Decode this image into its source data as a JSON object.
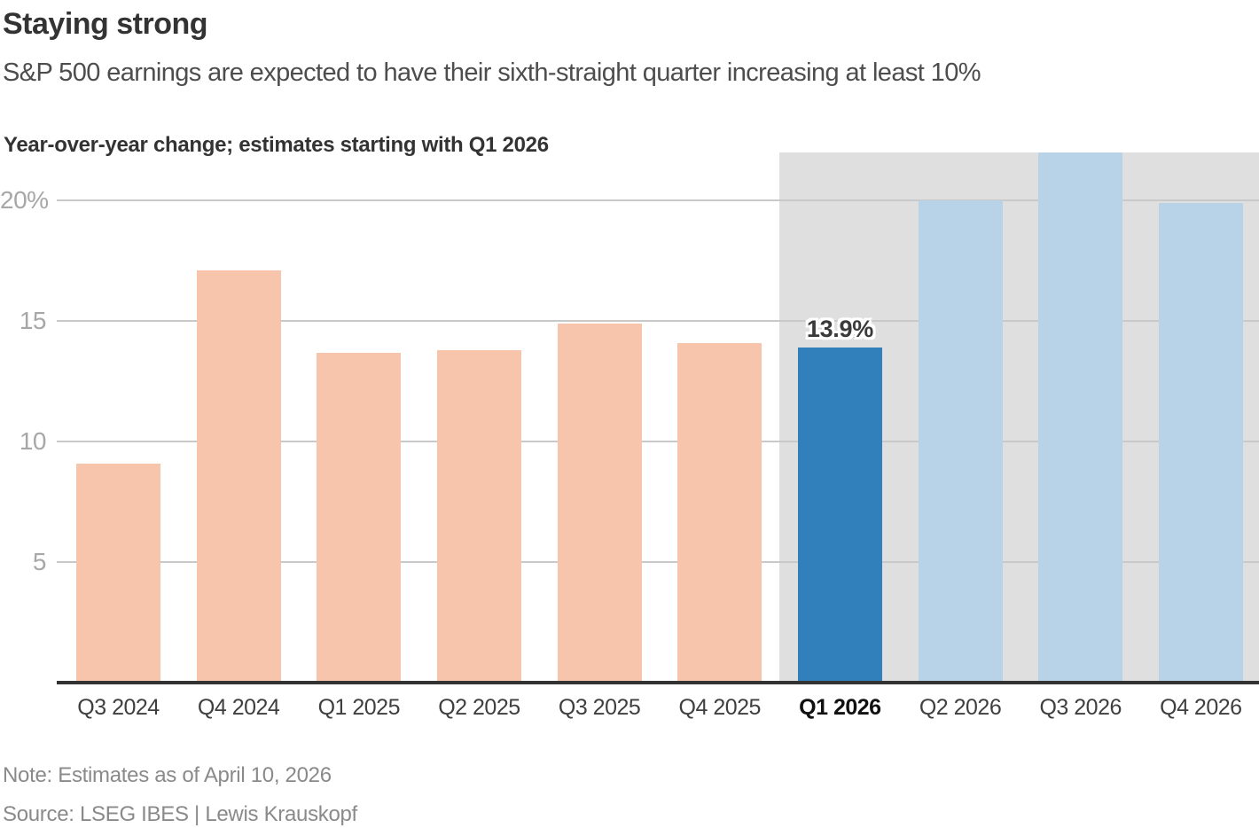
{
  "chart_data": {
    "type": "bar",
    "title": "Staying strong",
    "subtitle": "S&P 500 earnings are expected to have their sixth-straight quarter increasing at least 10%",
    "axis_note": "Year-over-year change; estimates starting with Q1 2026",
    "categories": [
      "Q3 2024",
      "Q4 2024",
      "Q1 2025",
      "Q2 2025",
      "Q3 2025",
      "Q4 2025",
      "Q1 2026",
      "Q2 2026",
      "Q3 2026",
      "Q4 2026"
    ],
    "values": [
      9.1,
      17.1,
      13.7,
      13.8,
      14.9,
      14.1,
      13.9,
      20.0,
      22.0,
      19.9
    ],
    "is_estimate": [
      false,
      false,
      false,
      false,
      false,
      false,
      true,
      true,
      true,
      true
    ],
    "highlight": {
      "index": 6,
      "label": "13.9%"
    },
    "ylim": [
      0,
      22
    ],
    "yticks": {
      "values": [
        20,
        15,
        10,
        5
      ],
      "labels": [
        "20%",
        "15",
        "10",
        "5"
      ]
    },
    "grid": "horizontal",
    "legend": "none",
    "colors": {
      "actual": "#f6c5ab",
      "estimate": "#b8d3e8",
      "estimate_highlight": "#3280bb",
      "estimate_band": "#dfdfdf",
      "gridline": "#c9c9c9",
      "axis_line": "#333333"
    }
  },
  "footer": {
    "note": "Note: Estimates as of April 10, 2026",
    "source": "Source: LSEG IBES | Lewis Krauskopf"
  }
}
